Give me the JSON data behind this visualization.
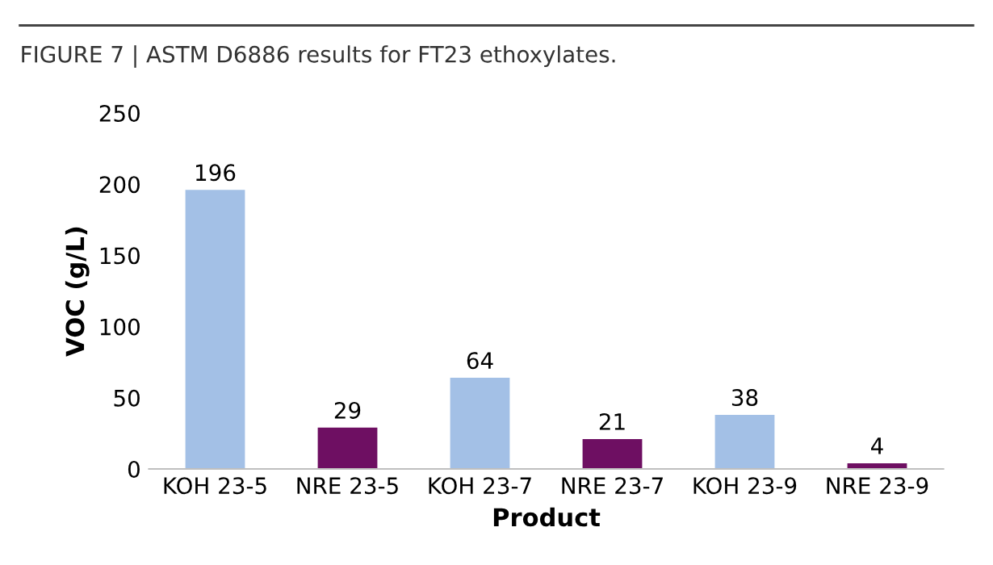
{
  "chart_data": {
    "type": "bar",
    "title": "FIGURE 7 | ASTM D6886 results for FT23 ethoxylates.",
    "xlabel": "Product",
    "ylabel": "VOC (g/L)",
    "categories": [
      "KOH 23-5",
      "NRE 23-5",
      "KOH 23-7",
      "NRE 23-7",
      "KOH 23-9",
      "NRE 23-9"
    ],
    "values": [
      196,
      29,
      64,
      21,
      38,
      4
    ],
    "colors": [
      "#a3c0e6",
      "#6e0f62",
      "#a3c0e6",
      "#6e0f62",
      "#a3c0e6",
      "#6e0f62"
    ],
    "ylim": [
      0,
      250
    ],
    "yticks": [
      0,
      50,
      100,
      150,
      200,
      250
    ],
    "data_labels": true,
    "grid": false,
    "legend": false
  }
}
